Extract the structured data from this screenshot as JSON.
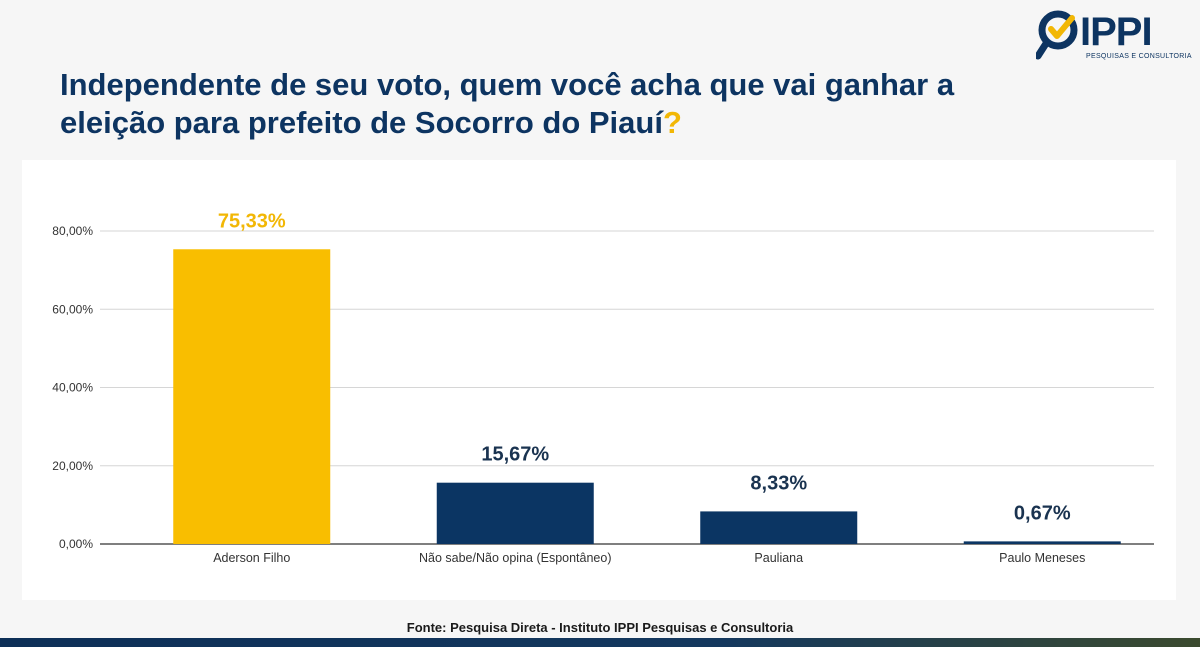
{
  "brand": {
    "name": "IPPI",
    "subtitle": "PESQUISAS E CONSULTORIA",
    "navy": "#0d3461",
    "gold": "#f2b705"
  },
  "title": {
    "text": "Independente de seu voto, quem você acha que vai ganhar a eleição para prefeito de Socorro do Piauí",
    "question_mark": "?"
  },
  "source": "Fonte: Pesquisa Direta - Instituto IPPI Pesquisas e Consultoria",
  "chart_data": {
    "type": "bar",
    "categories": [
      "Aderson Filho",
      "Não sabe/Não opina (Espontâneo)",
      "Pauliana",
      "Paulo Meneses"
    ],
    "values": [
      75.33,
      15.67,
      8.33,
      0.67
    ],
    "data_labels": [
      "75,33%",
      "15,67%",
      "8,33%",
      "0,67%"
    ],
    "bar_colors": [
      "#f9be00",
      "#0b3563",
      "#0b3563",
      "#0b3563"
    ],
    "label_colors": [
      "#f2b705",
      "#1a3350",
      "#1a3350",
      "#1a3350"
    ],
    "yticks": [
      0,
      20,
      40,
      60,
      80
    ],
    "ytick_labels": [
      "0,00%",
      "20,00%",
      "40,00%",
      "60,00%",
      "80,00%"
    ],
    "ylim": [
      0,
      80
    ],
    "grid": true,
    "title": "",
    "xlabel": "",
    "ylabel": ""
  }
}
